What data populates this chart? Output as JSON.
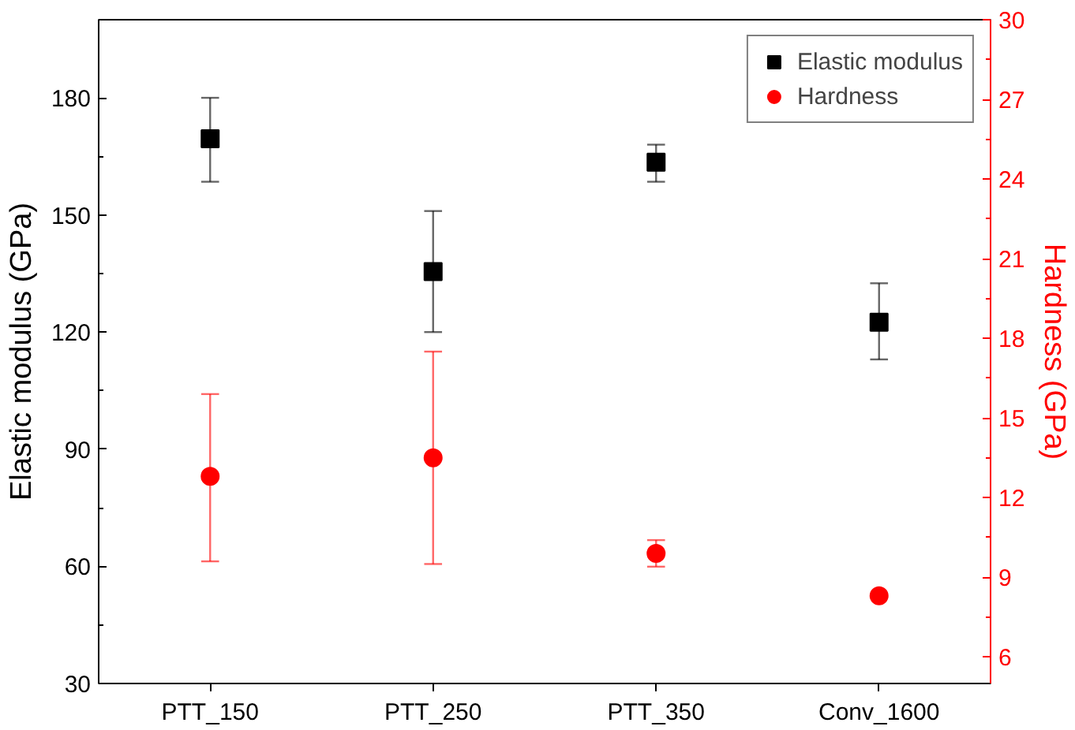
{
  "chart_data": {
    "type": "scatter",
    "xlabel": null,
    "ylabel": "Elastic modulus (GPa)",
    "y2label": "Hardness (GPa)",
    "categories": [
      "PTT_150",
      "PTT_250",
      "PTT_350",
      "Conv_1600"
    ],
    "series": [
      {
        "name": "Elastic modulus",
        "color": "#000000",
        "marker": "square",
        "values": [
          169.5,
          135.5,
          163.5,
          122.5
        ],
        "errors": [
          [
            158.5,
            180
          ],
          [
            120,
            151
          ],
          [
            158.5,
            168
          ],
          [
            113,
            132.5
          ]
        ]
      },
      {
        "name": "Hardness",
        "color": "#ff0000",
        "marker": "circle",
        "axis": "y2",
        "values": [
          12.8,
          13.5,
          9.9,
          8.3
        ],
        "errors": [
          [
            9.6,
            15.9
          ],
          [
            9.5,
            17.5
          ],
          [
            9.4,
            10.4
          ],
          null
        ]
      }
    ],
    "ylim": [
      30,
      200
    ],
    "yticks": [
      30,
      60,
      90,
      120,
      150,
      180
    ],
    "y2lim": [
      5,
      30
    ],
    "y2ticks": [
      6,
      9,
      12,
      15,
      18,
      21,
      24,
      27,
      30
    ],
    "legend": "top right",
    "grid": false
  }
}
